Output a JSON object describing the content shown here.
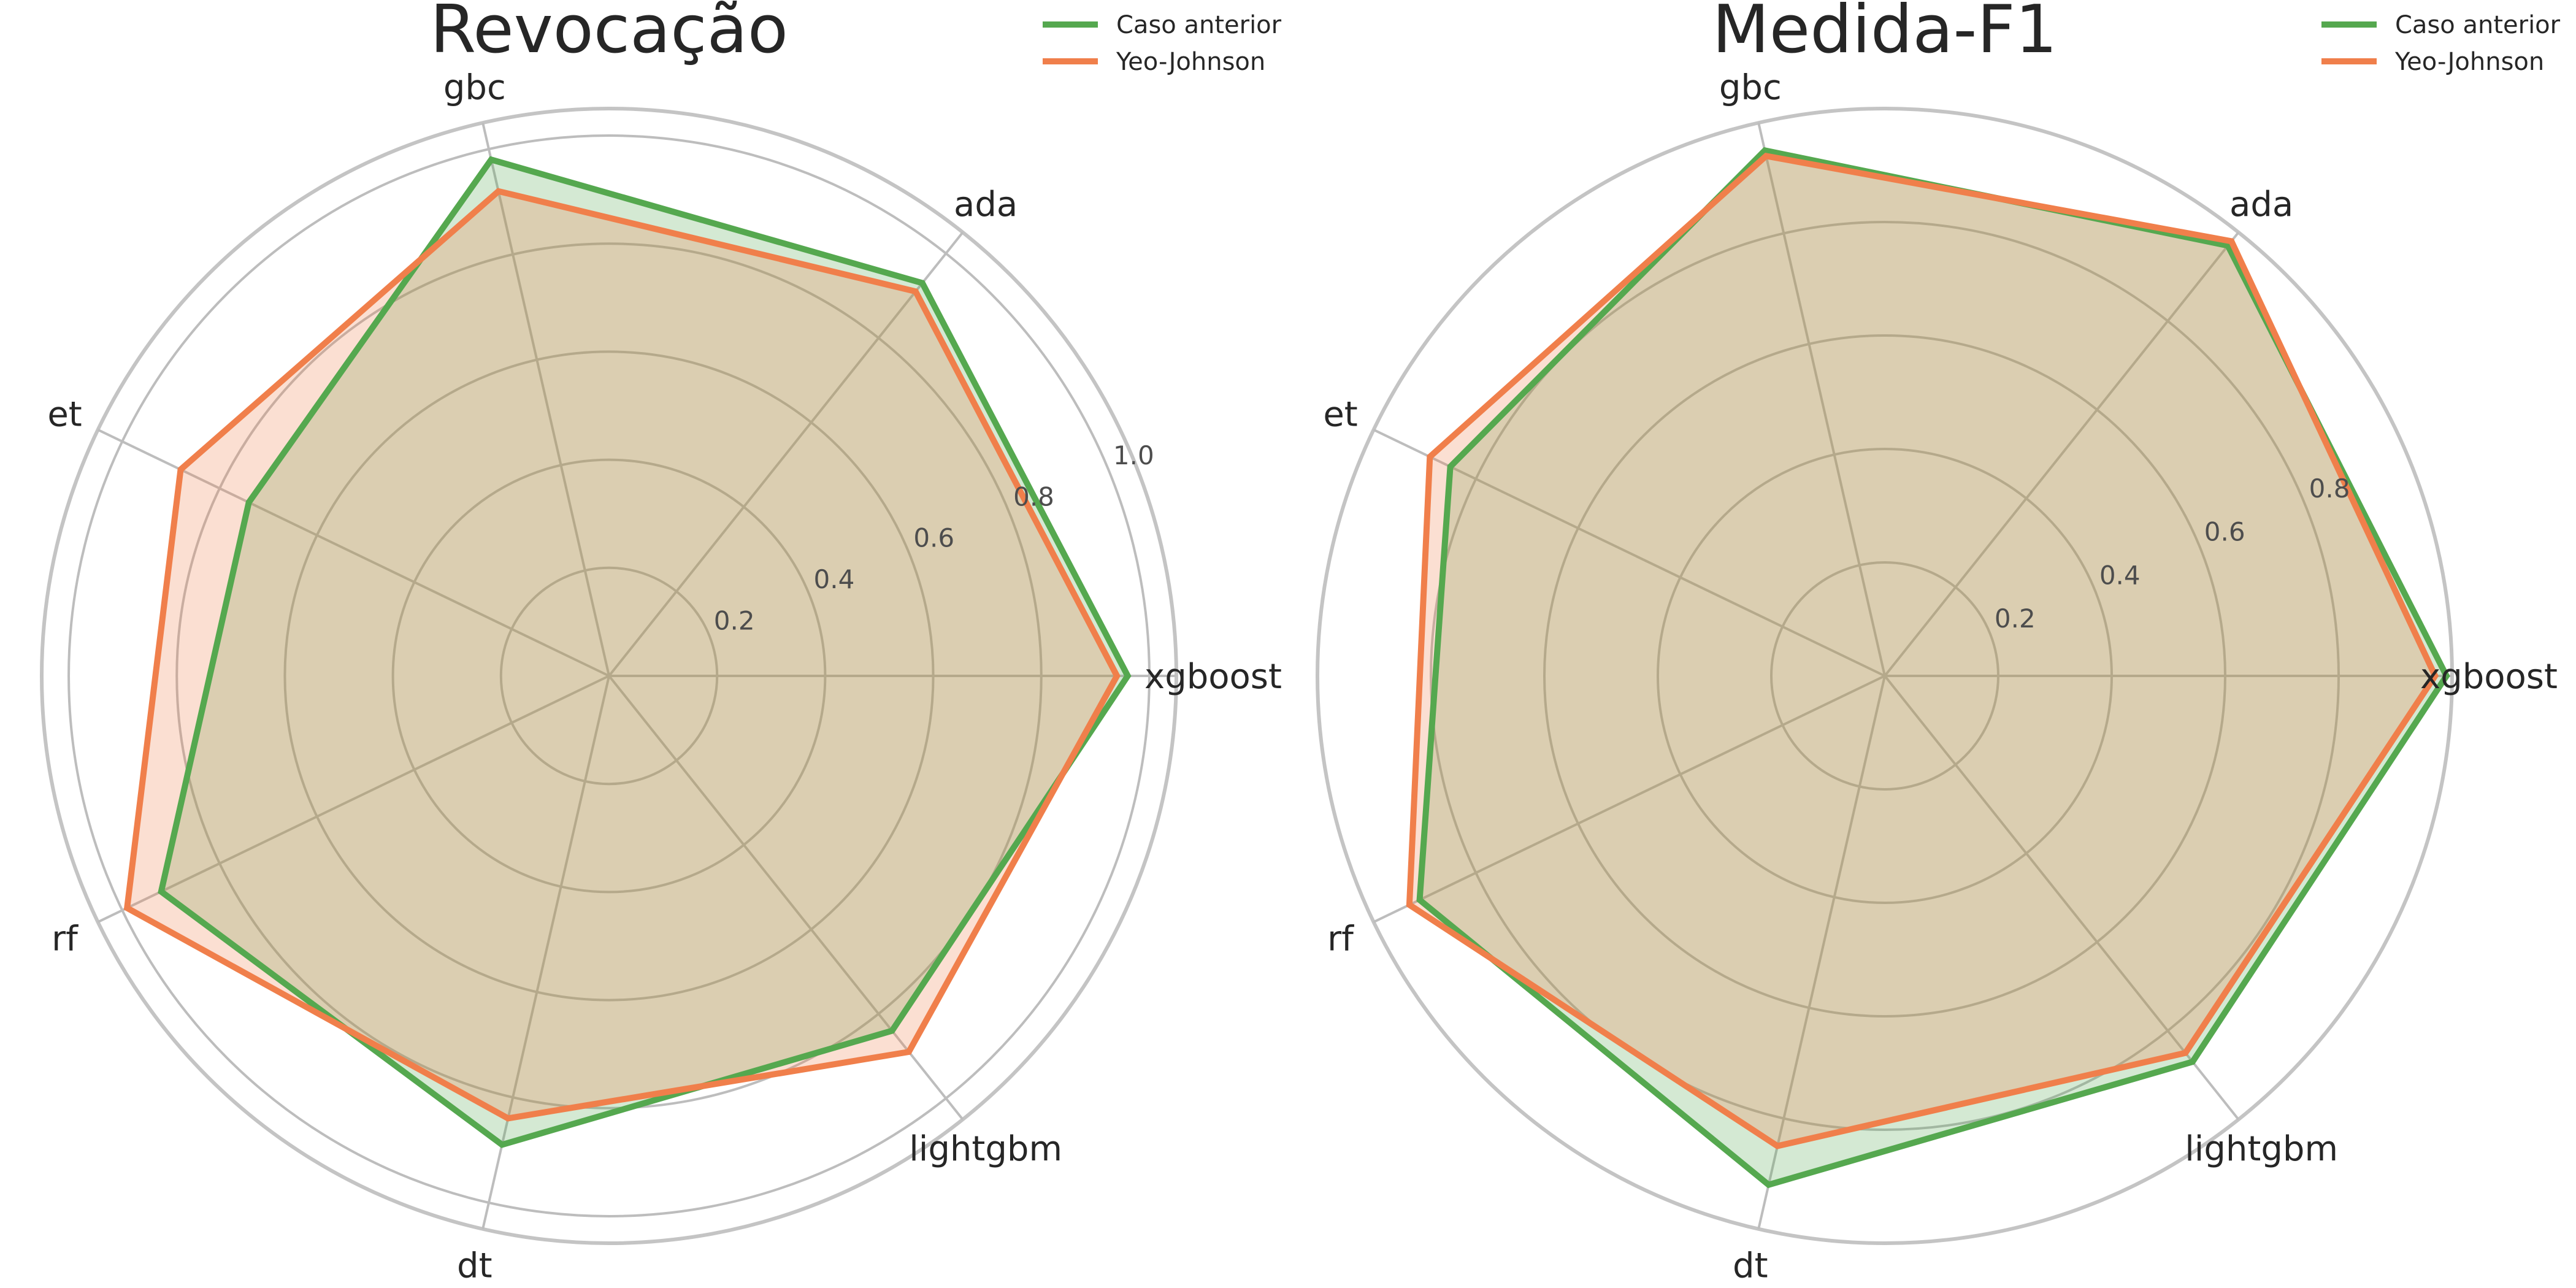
{
  "chart_data": [
    {
      "type": "radar",
      "title": "Revocação",
      "categories": [
        "xgboost",
        "ada",
        "gbc",
        "et",
        "rf",
        "dt",
        "lightgbm"
      ],
      "series": [
        {
          "name": "Caso anterior",
          "color": "#55a84f",
          "values": [
            0.96,
            0.93,
            0.98,
            0.74,
            0.92,
            0.89,
            0.84
          ]
        },
        {
          "name": "Yeo-Johnson",
          "color": "#f07f4b",
          "values": [
            0.94,
            0.91,
            0.92,
            0.88,
            0.99,
            0.84,
            0.89
          ]
        }
      ],
      "rlim": [
        0,
        1.05
      ],
      "rticks": [
        "0.2",
        "0.4",
        "0.6",
        "0.8",
        "1.0"
      ],
      "grid": true,
      "legend_position": "top-right"
    },
    {
      "type": "radar",
      "title": "Medida-F1",
      "categories": [
        "xgboost",
        "ada",
        "gbc",
        "et",
        "rf",
        "dt",
        "lightgbm"
      ],
      "series": [
        {
          "name": "Caso anterior",
          "color": "#55a84f",
          "values": [
            0.99,
            0.97,
            0.95,
            0.85,
            0.91,
            0.92,
            0.87
          ]
        },
        {
          "name": "Yeo-Johnson",
          "color": "#f07f4b",
          "values": [
            0.97,
            0.98,
            0.94,
            0.89,
            0.93,
            0.85,
            0.85
          ]
        }
      ],
      "rlim": [
        0,
        1.0
      ],
      "rticks": [
        "0.2",
        "0.4",
        "0.6",
        "0.8"
      ],
      "grid": true,
      "legend_position": "top-right"
    }
  ]
}
